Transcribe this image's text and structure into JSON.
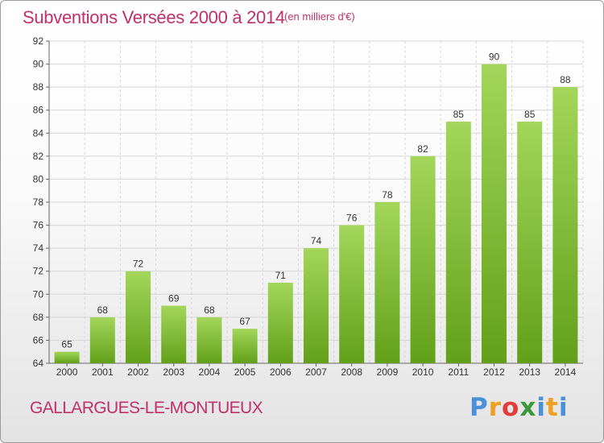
{
  "header": {
    "title": "Subventions Versées 2000 à 2014",
    "unit": "(en milliers d'€)"
  },
  "footer": {
    "commune": "GALLARGUES-LE-MONTUEUX",
    "brand": "Proxiti"
  },
  "colors": {
    "title": "#c0306a",
    "bar_top": "#a3d65a",
    "bar_bottom": "#62a019",
    "grid": "#d6d6d6"
  },
  "chart_data": {
    "type": "bar",
    "title": "Subventions Versées 2000 à 2014",
    "subtitle": "(en milliers d'€)",
    "xlabel": "",
    "ylabel": "",
    "categories": [
      "2000",
      "2001",
      "2002",
      "2003",
      "2004",
      "2005",
      "2006",
      "2007",
      "2008",
      "2009",
      "2010",
      "2011",
      "2012",
      "2013",
      "2014"
    ],
    "values": [
      65,
      68,
      72,
      69,
      68,
      67,
      71,
      74,
      76,
      78,
      82,
      85,
      90,
      85,
      88
    ],
    "ylim": [
      64,
      92
    ],
    "yticks": [
      64,
      66,
      68,
      70,
      72,
      74,
      76,
      78,
      80,
      82,
      84,
      86,
      88,
      90,
      92
    ],
    "grid": true,
    "data_labels": true
  }
}
